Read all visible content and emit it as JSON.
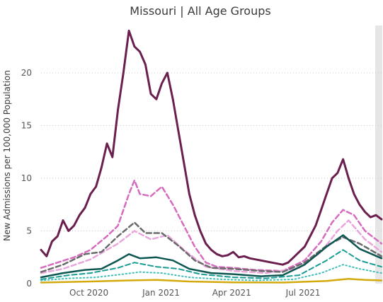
{
  "chart_data": {
    "type": "line",
    "title": "Missouri | All Age Groups",
    "xlabel": "",
    "ylabel": "New Admissions per 100,000 Population",
    "x_ticks": [
      "Oct 2020",
      "Jan 2021",
      "Apr 2021",
      "Jul 2021"
    ],
    "y_ticks": [
      0,
      5,
      10,
      15,
      20
    ],
    "ylim": [
      0,
      24.5
    ],
    "xlim": [
      "2020-08-01",
      "2021-10-10"
    ],
    "grid": "horizontal",
    "legend": "none",
    "highlight_band": [
      "2021-10-01",
      "2021-10-10"
    ],
    "series": [
      {
        "color": "#6b1f4f",
        "dash": "solid",
        "width": 3,
        "points": [
          [
            "2020-08-01",
            3.2
          ],
          [
            "2020-08-08",
            2.6
          ],
          [
            "2020-08-15",
            4.0
          ],
          [
            "2020-08-22",
            4.5
          ],
          [
            "2020-08-29",
            6.0
          ],
          [
            "2020-09-05",
            5.0
          ],
          [
            "2020-09-12",
            5.5
          ],
          [
            "2020-09-19",
            6.5
          ],
          [
            "2020-09-26",
            7.2
          ],
          [
            "2020-10-03",
            8.5
          ],
          [
            "2020-10-10",
            9.2
          ],
          [
            "2020-10-17",
            11.0
          ],
          [
            "2020-10-24",
            13.3
          ],
          [
            "2020-10-31",
            12.0
          ],
          [
            "2020-11-07",
            16.5
          ],
          [
            "2020-11-14",
            20.0
          ],
          [
            "2020-11-21",
            24.0
          ],
          [
            "2020-11-28",
            22.5
          ],
          [
            "2020-12-05",
            22.0
          ],
          [
            "2020-12-12",
            20.8
          ],
          [
            "2020-12-19",
            18.0
          ],
          [
            "2020-12-26",
            17.5
          ],
          [
            "2021-01-02",
            19.0
          ],
          [
            "2021-01-09",
            20.0
          ],
          [
            "2021-01-16",
            17.5
          ],
          [
            "2021-01-23",
            14.5
          ],
          [
            "2021-01-30",
            11.5
          ],
          [
            "2021-02-06",
            8.5
          ],
          [
            "2021-02-13",
            6.5
          ],
          [
            "2021-02-20",
            5.0
          ],
          [
            "2021-02-27",
            3.8
          ],
          [
            "2021-03-06",
            3.2
          ],
          [
            "2021-03-13",
            2.8
          ],
          [
            "2021-03-20",
            2.6
          ],
          [
            "2021-03-27",
            2.7
          ],
          [
            "2021-04-03",
            3.0
          ],
          [
            "2021-04-10",
            2.5
          ],
          [
            "2021-04-17",
            2.6
          ],
          [
            "2021-04-24",
            2.4
          ],
          [
            "2021-05-01",
            2.3
          ],
          [
            "2021-05-08",
            2.2
          ],
          [
            "2021-05-15",
            2.1
          ],
          [
            "2021-05-22",
            2.0
          ],
          [
            "2021-05-29",
            1.9
          ],
          [
            "2021-06-05",
            1.8
          ],
          [
            "2021-06-12",
            2.0
          ],
          [
            "2021-06-19",
            2.5
          ],
          [
            "2021-06-26",
            3.0
          ],
          [
            "2021-07-03",
            3.5
          ],
          [
            "2021-07-10",
            4.5
          ],
          [
            "2021-07-17",
            5.5
          ],
          [
            "2021-07-24",
            7.0
          ],
          [
            "2021-07-31",
            8.5
          ],
          [
            "2021-08-07",
            10.0
          ],
          [
            "2021-08-14",
            10.5
          ],
          [
            "2021-08-21",
            11.8
          ],
          [
            "2021-08-28",
            10.0
          ],
          [
            "2021-09-04",
            8.5
          ],
          [
            "2021-09-11",
            7.5
          ],
          [
            "2021-09-18",
            6.8
          ],
          [
            "2021-09-25",
            6.3
          ],
          [
            "2021-10-02",
            6.5
          ],
          [
            "2021-10-09",
            6.1
          ]
        ]
      },
      {
        "color": "#d66cbf",
        "dash": "dashed",
        "width": 2.5,
        "points": [
          [
            "2020-08-01",
            1.5
          ],
          [
            "2020-08-22",
            2.0
          ],
          [
            "2020-09-12",
            2.5
          ],
          [
            "2020-10-03",
            3.2
          ],
          [
            "2020-10-24",
            4.5
          ],
          [
            "2020-11-07",
            5.5
          ],
          [
            "2020-11-21",
            8.5
          ],
          [
            "2020-11-28",
            9.8
          ],
          [
            "2020-12-05",
            8.5
          ],
          [
            "2020-12-19",
            8.3
          ],
          [
            "2021-01-02",
            9.2
          ],
          [
            "2021-01-16",
            7.5
          ],
          [
            "2021-01-30",
            5.5
          ],
          [
            "2021-02-13",
            3.5
          ],
          [
            "2021-02-27",
            2.0
          ],
          [
            "2021-03-13",
            1.6
          ],
          [
            "2021-04-03",
            1.5
          ],
          [
            "2021-05-01",
            1.3
          ],
          [
            "2021-06-05",
            1.2
          ],
          [
            "2021-07-03",
            2.2
          ],
          [
            "2021-07-24",
            4.0
          ],
          [
            "2021-08-07",
            5.8
          ],
          [
            "2021-08-21",
            7.0
          ],
          [
            "2021-09-04",
            6.5
          ],
          [
            "2021-09-18",
            5.0
          ],
          [
            "2021-10-09",
            3.8
          ]
        ]
      },
      {
        "color": "#e9a6dc",
        "dash": "dashed",
        "width": 2.5,
        "points": [
          [
            "2020-08-01",
            1.0
          ],
          [
            "2020-08-29",
            1.4
          ],
          [
            "2020-10-03",
            2.3
          ],
          [
            "2020-11-07",
            3.8
          ],
          [
            "2020-11-28",
            5.0
          ],
          [
            "2020-12-19",
            4.2
          ],
          [
            "2021-01-09",
            4.6
          ],
          [
            "2021-01-30",
            3.2
          ],
          [
            "2021-02-27",
            1.6
          ],
          [
            "2021-04-03",
            1.2
          ],
          [
            "2021-05-15",
            1.0
          ],
          [
            "2021-06-26",
            1.5
          ],
          [
            "2021-07-24",
            3.0
          ],
          [
            "2021-08-14",
            5.0
          ],
          [
            "2021-08-28",
            6.0
          ],
          [
            "2021-09-18",
            4.2
          ],
          [
            "2021-10-09",
            3.0
          ]
        ]
      },
      {
        "color": "#6a6a6a",
        "dash": "dashed",
        "width": 2.5,
        "points": [
          [
            "2020-08-01",
            1.1
          ],
          [
            "2020-08-29",
            1.8
          ],
          [
            "2020-09-26",
            2.8
          ],
          [
            "2020-10-17",
            3.0
          ],
          [
            "2020-11-07",
            4.5
          ],
          [
            "2020-11-28",
            5.8
          ],
          [
            "2020-12-12",
            4.8
          ],
          [
            "2021-01-02",
            4.8
          ],
          [
            "2021-01-23",
            3.6
          ],
          [
            "2021-02-13",
            2.2
          ],
          [
            "2021-03-06",
            1.5
          ],
          [
            "2021-04-03",
            1.4
          ],
          [
            "2021-05-08",
            1.2
          ],
          [
            "2021-06-05",
            1.1
          ],
          [
            "2021-07-03",
            2.0
          ],
          [
            "2021-07-31",
            3.6
          ],
          [
            "2021-08-21",
            4.4
          ],
          [
            "2021-09-11",
            3.8
          ],
          [
            "2021-10-09",
            2.6
          ]
        ]
      },
      {
        "color": "#0d5752",
        "dash": "solid",
        "width": 2.5,
        "points": [
          [
            "2020-08-01",
            0.6
          ],
          [
            "2020-08-29",
            1.0
          ],
          [
            "2020-09-26",
            1.3
          ],
          [
            "2020-10-17",
            1.4
          ],
          [
            "2020-11-07",
            2.2
          ],
          [
            "2020-11-21",
            2.8
          ],
          [
            "2020-12-05",
            2.4
          ],
          [
            "2020-12-26",
            2.5
          ],
          [
            "2021-01-16",
            2.2
          ],
          [
            "2021-02-06",
            1.4
          ],
          [
            "2021-03-06",
            1.0
          ],
          [
            "2021-04-03",
            0.9
          ],
          [
            "2021-05-08",
            0.7
          ],
          [
            "2021-06-05",
            0.8
          ],
          [
            "2021-07-03",
            1.8
          ],
          [
            "2021-07-31",
            3.5
          ],
          [
            "2021-08-21",
            4.6
          ],
          [
            "2021-09-11",
            3.3
          ],
          [
            "2021-10-09",
            2.4
          ]
        ]
      },
      {
        "color": "#179c94",
        "dash": "dashed",
        "width": 2,
        "points": [
          [
            "2020-08-01",
            0.4
          ],
          [
            "2020-09-05",
            0.8
          ],
          [
            "2020-10-03",
            1.0
          ],
          [
            "2020-11-07",
            1.5
          ],
          [
            "2020-11-28",
            2.0
          ],
          [
            "2020-12-26",
            1.6
          ],
          [
            "2021-01-23",
            1.4
          ],
          [
            "2021-02-20",
            0.9
          ],
          [
            "2021-04-03",
            0.6
          ],
          [
            "2021-05-15",
            0.5
          ],
          [
            "2021-06-26",
            0.8
          ],
          [
            "2021-07-31",
            2.2
          ],
          [
            "2021-08-21",
            3.2
          ],
          [
            "2021-09-11",
            2.2
          ],
          [
            "2021-10-09",
            1.6
          ]
        ]
      },
      {
        "color": "#3fbfb8",
        "dash": "dotted",
        "width": 2,
        "points": [
          [
            "2020-08-01",
            0.3
          ],
          [
            "2020-09-05",
            0.5
          ],
          [
            "2020-10-10",
            0.6
          ],
          [
            "2020-11-14",
            0.9
          ],
          [
            "2020-12-05",
            1.1
          ],
          [
            "2021-01-02",
            1.0
          ],
          [
            "2021-02-06",
            0.6
          ],
          [
            "2021-03-20",
            0.4
          ],
          [
            "2021-05-01",
            0.3
          ],
          [
            "2021-06-19",
            0.4
          ],
          [
            "2021-07-24",
            1.0
          ],
          [
            "2021-08-21",
            1.8
          ],
          [
            "2021-09-11",
            1.4
          ],
          [
            "2021-10-09",
            1.0
          ]
        ]
      },
      {
        "color": "#d4a90e",
        "dash": "solid",
        "width": 2.5,
        "points": [
          [
            "2020-08-01",
            0.1
          ],
          [
            "2020-10-03",
            0.2
          ],
          [
            "2020-11-21",
            0.3
          ],
          [
            "2020-12-26",
            0.35
          ],
          [
            "2021-02-06",
            0.2
          ],
          [
            "2021-04-03",
            0.12
          ],
          [
            "2021-06-05",
            0.1
          ],
          [
            "2021-07-31",
            0.25
          ],
          [
            "2021-08-28",
            0.45
          ],
          [
            "2021-09-18",
            0.35
          ],
          [
            "2021-10-09",
            0.3
          ]
        ]
      }
    ]
  }
}
